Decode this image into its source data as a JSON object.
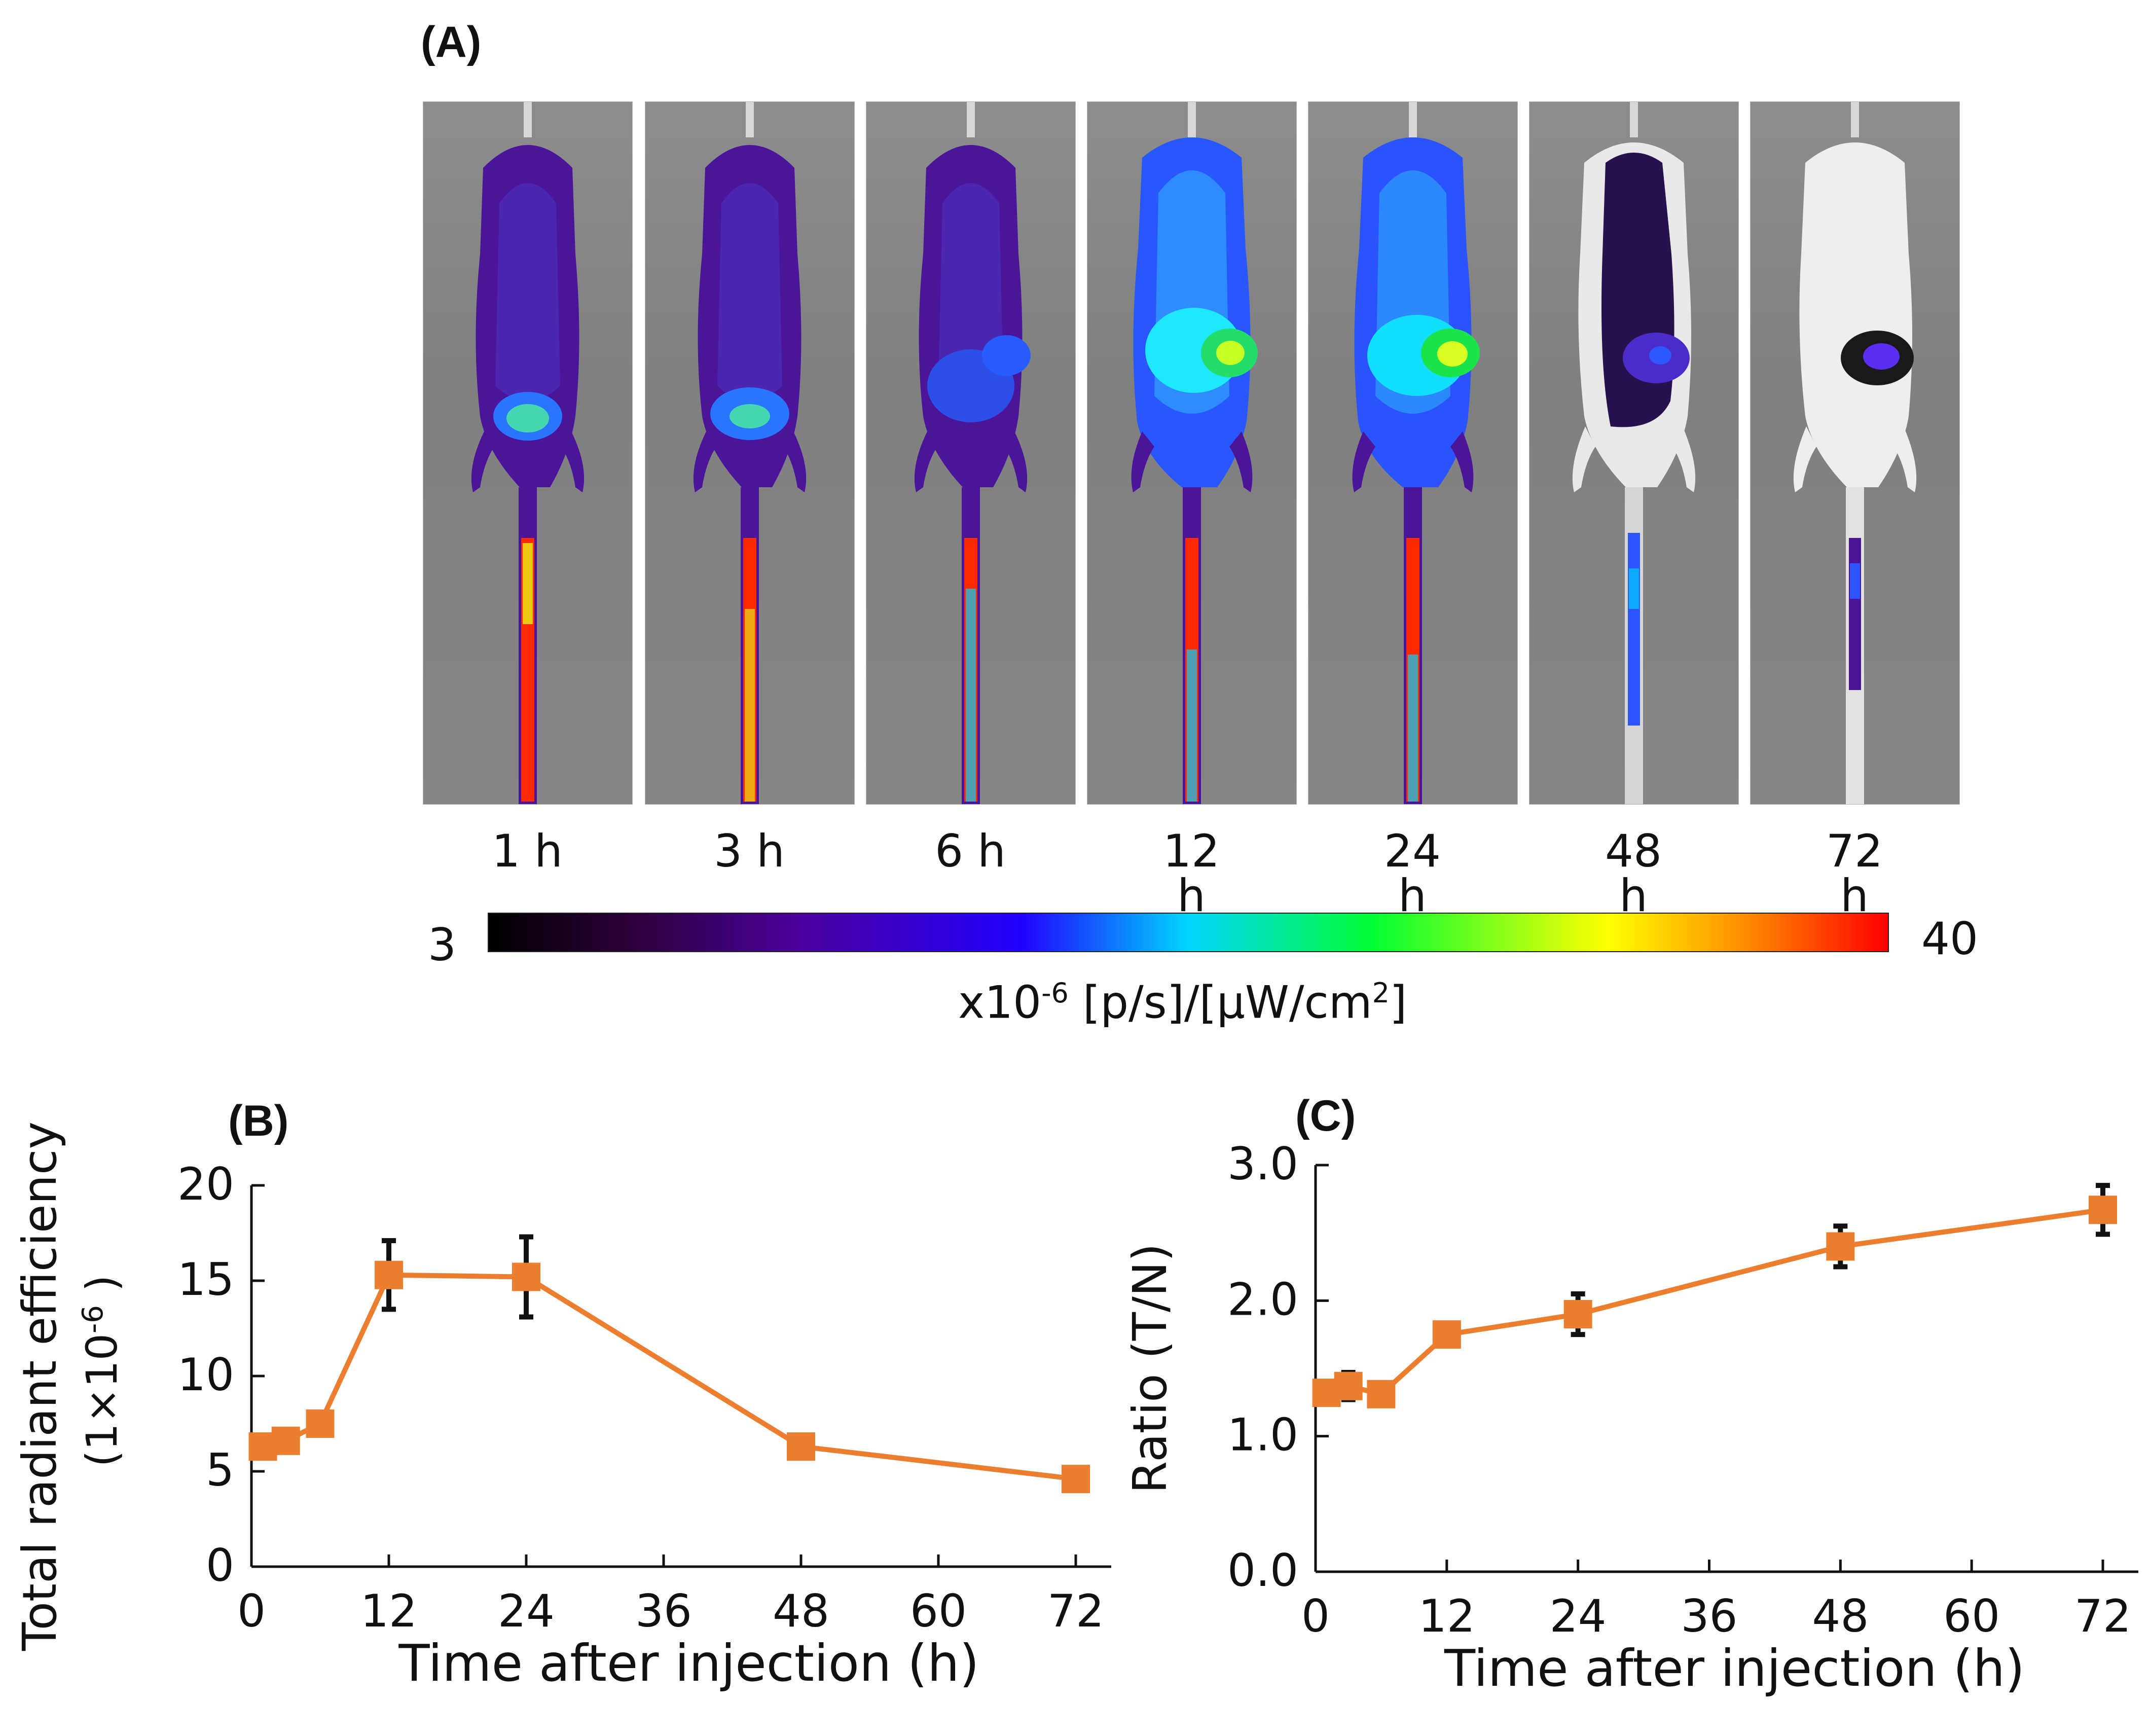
{
  "panels": {
    "a_label": "(A)",
    "b_label": "(B)",
    "c_label": "(C)"
  },
  "images": {
    "time_labels": [
      "1 h",
      "3 h",
      "6 h",
      "12 h",
      "24 h",
      "48 h",
      "72 h"
    ]
  },
  "colorbar": {
    "min_label": "3",
    "max_label": "40",
    "unit_base": "x10",
    "unit_exp": "-6",
    "unit_rest": " [p/s]/[µW/cm",
    "unit_sq": "2",
    "unit_end": "]",
    "stops": [
      "#000000",
      "#2b0038",
      "#4b009c",
      "#2200ff",
      "#00d6ff",
      "#00ff36",
      "#ffff00",
      "#ff8a00",
      "#ff0000"
    ]
  },
  "chart_data": [
    {
      "type": "line",
      "panel": "(B)",
      "xlabel": "Time after injection (h)",
      "ylabel_line1": "Total radiant efficiency",
      "ylabel_line2_base": "(1×10",
      "ylabel_line2_exp": "-6",
      "ylabel_line2_end": " )",
      "x": [
        1,
        3,
        6,
        12,
        24,
        48,
        72
      ],
      "y": [
        6.3,
        6.6,
        7.5,
        15.3,
        15.2,
        6.3,
        4.6
      ],
      "error": [
        0.3,
        0.5,
        0.4,
        1.8,
        2.1,
        0.6,
        0.2
      ],
      "x_ticks": [
        0,
        12,
        24,
        36,
        48,
        60,
        72
      ],
      "y_ticks": [
        0,
        5,
        10,
        15,
        20
      ],
      "xlim": [
        0,
        72
      ],
      "ylim": [
        0,
        20
      ],
      "series_color": "#ec7f2f",
      "error_color": "#111111"
    },
    {
      "type": "line",
      "panel": "(C)",
      "xlabel": "Time after injection (h)",
      "ylabel_line1": "Ratio (T/N)",
      "x": [
        1,
        3,
        6,
        12,
        24,
        48,
        72
      ],
      "y": [
        1.32,
        1.37,
        1.31,
        1.75,
        1.9,
        2.4,
        2.67
      ],
      "error": [
        0.08,
        0.1,
        0.07,
        0.05,
        0.15,
        0.15,
        0.18
      ],
      "x_ticks": [
        0,
        12,
        24,
        36,
        48,
        60,
        72
      ],
      "y_ticks": [
        "0.0",
        "1.0",
        "2.0",
        "3.0"
      ],
      "xlim": [
        0,
        72
      ],
      "ylim": [
        0,
        3
      ],
      "series_color": "#ec7f2f",
      "error_color": "#111111"
    }
  ]
}
